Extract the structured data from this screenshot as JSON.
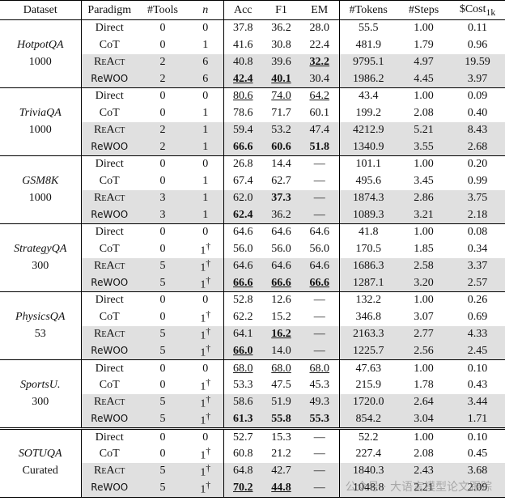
{
  "header": [
    "Dataset",
    "Paradigm",
    "#Tools",
    "n",
    "Acc",
    "F1",
    "EM",
    "#Tokens",
    "#Steps",
    "$Cost"
  ],
  "cost_subscript": "1k",
  "groups": [
    {
      "dataset": "HotpotQA",
      "size": "1000",
      "rows": [
        {
          "cells": [
            "Direct",
            "0",
            "0",
            "37.8",
            "36.2",
            "28.0",
            "55.5",
            "1.00",
            "0.11"
          ]
        },
        {
          "cells": [
            "CoT",
            "0",
            "1",
            "41.6",
            "30.8",
            "22.4",
            "481.9",
            "1.79",
            "0.96"
          ]
        },
        {
          "cells": [
            "ReAct",
            "2",
            "6",
            "40.8",
            "39.6",
            "32.2",
            "9795.1",
            "4.97",
            "19.59"
          ],
          "shaded": true,
          "bold": [
            5
          ],
          "underline": [
            5
          ]
        },
        {
          "cells": [
            "ReWOO",
            "2",
            "6",
            "42.4",
            "40.1",
            "30.4",
            "1986.2",
            "4.45",
            "3.97"
          ],
          "shaded": true,
          "bold": [
            3,
            4
          ],
          "underline": [
            3,
            4
          ]
        }
      ]
    },
    {
      "dataset": "TriviaQA",
      "size": "1000",
      "rows": [
        {
          "cells": [
            "Direct",
            "0",
            "0",
            "80.6",
            "74.0",
            "64.2",
            "43.4",
            "1.00",
            "0.09"
          ],
          "underline": [
            3,
            4,
            5
          ]
        },
        {
          "cells": [
            "CoT",
            "0",
            "1",
            "78.6",
            "71.7",
            "60.1",
            "199.2",
            "2.08",
            "0.40"
          ]
        },
        {
          "cells": [
            "ReAct",
            "2",
            "1",
            "59.4",
            "53.2",
            "47.4",
            "4212.9",
            "5.21",
            "8.43"
          ],
          "shaded": true
        },
        {
          "cells": [
            "ReWOO",
            "2",
            "1",
            "66.6",
            "60.6",
            "51.8",
            "1340.9",
            "3.55",
            "2.68"
          ],
          "shaded": true,
          "bold": [
            3,
            4,
            5
          ]
        }
      ]
    },
    {
      "dataset": "GSM8K",
      "size": "1000",
      "rows": [
        {
          "cells": [
            "Direct",
            "0",
            "0",
            "26.8",
            "14.4",
            "—",
            "101.1",
            "1.00",
            "0.20"
          ]
        },
        {
          "cells": [
            "CoT",
            "0",
            "1",
            "67.4",
            "62.7",
            "—",
            "495.6",
            "3.45",
            "0.99"
          ]
        },
        {
          "cells": [
            "ReAct",
            "3",
            "1",
            "62.0",
            "37.3",
            "—",
            "1874.3",
            "2.86",
            "3.75"
          ],
          "shaded": true,
          "bold": [
            4
          ]
        },
        {
          "cells": [
            "ReWOO",
            "3",
            "1",
            "62.4",
            "36.2",
            "—",
            "1089.3",
            "3.21",
            "2.18"
          ],
          "shaded": true,
          "bold": [
            3
          ]
        }
      ]
    },
    {
      "dataset": "StrategyQA",
      "size": "300",
      "rows": [
        {
          "cells": [
            "Direct",
            "0",
            "0",
            "64.6",
            "64.6",
            "64.6",
            "41.8",
            "1.00",
            "0.08"
          ]
        },
        {
          "cells": [
            "CoT",
            "0",
            "1",
            "56.0",
            "56.0",
            "56.0",
            "170.5",
            "1.85",
            "0.34"
          ],
          "n_sup": "†"
        },
        {
          "cells": [
            "ReAct",
            "5",
            "1",
            "64.6",
            "64.6",
            "64.6",
            "1686.3",
            "2.58",
            "3.37"
          ],
          "n_sup": "†",
          "shaded": true
        },
        {
          "cells": [
            "ReWOO",
            "5",
            "1",
            "66.6",
            "66.6",
            "66.6",
            "1287.1",
            "3.20",
            "2.57"
          ],
          "n_sup": "†",
          "shaded": true,
          "bold": [
            3,
            4,
            5
          ],
          "underline": [
            3,
            4,
            5
          ]
        }
      ]
    },
    {
      "dataset": "PhysicsQA",
      "size": "53",
      "rows": [
        {
          "cells": [
            "Direct",
            "0",
            "0",
            "52.8",
            "12.6",
            "—",
            "132.2",
            "1.00",
            "0.26"
          ]
        },
        {
          "cells": [
            "CoT",
            "0",
            "1",
            "62.2",
            "15.2",
            "—",
            "346.8",
            "3.07",
            "0.69"
          ],
          "n_sup": "†"
        },
        {
          "cells": [
            "ReAct",
            "5",
            "1",
            "64.1",
            "16.2",
            "—",
            "2163.3",
            "2.77",
            "4.33"
          ],
          "n_sup": "†",
          "shaded": true,
          "bold": [
            4
          ],
          "underline": [
            4
          ]
        },
        {
          "cells": [
            "ReWOO",
            "5",
            "1",
            "66.0",
            "14.0",
            "—",
            "1225.7",
            "2.56",
            "2.45"
          ],
          "n_sup": "†",
          "shaded": true,
          "bold": [
            3
          ],
          "underline": [
            3
          ]
        }
      ]
    },
    {
      "dataset": "SportsU.",
      "size": "300",
      "rows": [
        {
          "cells": [
            "Direct",
            "0",
            "0",
            "68.0",
            "68.0",
            "68.0",
            "47.63",
            "1.00",
            "0.10"
          ],
          "underline": [
            3,
            4,
            5
          ]
        },
        {
          "cells": [
            "CoT",
            "0",
            "1",
            "53.3",
            "47.5",
            "45.3",
            "215.9",
            "1.78",
            "0.43"
          ],
          "n_sup": "†"
        },
        {
          "cells": [
            "ReAct",
            "5",
            "1",
            "58.6",
            "51.9",
            "49.3",
            "1720.0",
            "2.64",
            "3.44"
          ],
          "n_sup": "†",
          "shaded": true
        },
        {
          "cells": [
            "ReWOO",
            "5",
            "1",
            "61.3",
            "55.8",
            "55.3",
            "854.2",
            "3.04",
            "1.71"
          ],
          "n_sup": "†",
          "shaded": true,
          "bold": [
            3,
            4,
            5
          ]
        }
      ]
    },
    {
      "dataset": "SOTUQA",
      "size": "Curated",
      "rows": [
        {
          "cells": [
            "Direct",
            "0",
            "0",
            "52.7",
            "15.3",
            "—",
            "52.2",
            "1.00",
            "0.10"
          ]
        },
        {
          "cells": [
            "CoT",
            "0",
            "1",
            "60.8",
            "21.2",
            "—",
            "227.4",
            "2.08",
            "0.45"
          ],
          "n_sup": "†"
        },
        {
          "cells": [
            "ReAct",
            "5",
            "1",
            "64.8",
            "42.7",
            "—",
            "1840.3",
            "2.43",
            "3.68"
          ],
          "n_sup": "†",
          "shaded": true
        },
        {
          "cells": [
            "ReWOO",
            "5",
            "1",
            "70.2",
            "44.8",
            "—",
            "1048.8",
            "2.21",
            "2.09"
          ],
          "n_sup": "†",
          "shaded": true,
          "bold": [
            3,
            4
          ],
          "underline": [
            3,
            4
          ]
        }
      ]
    }
  ],
  "watermark": "公众号 · 大语言模型论文跟踪"
}
